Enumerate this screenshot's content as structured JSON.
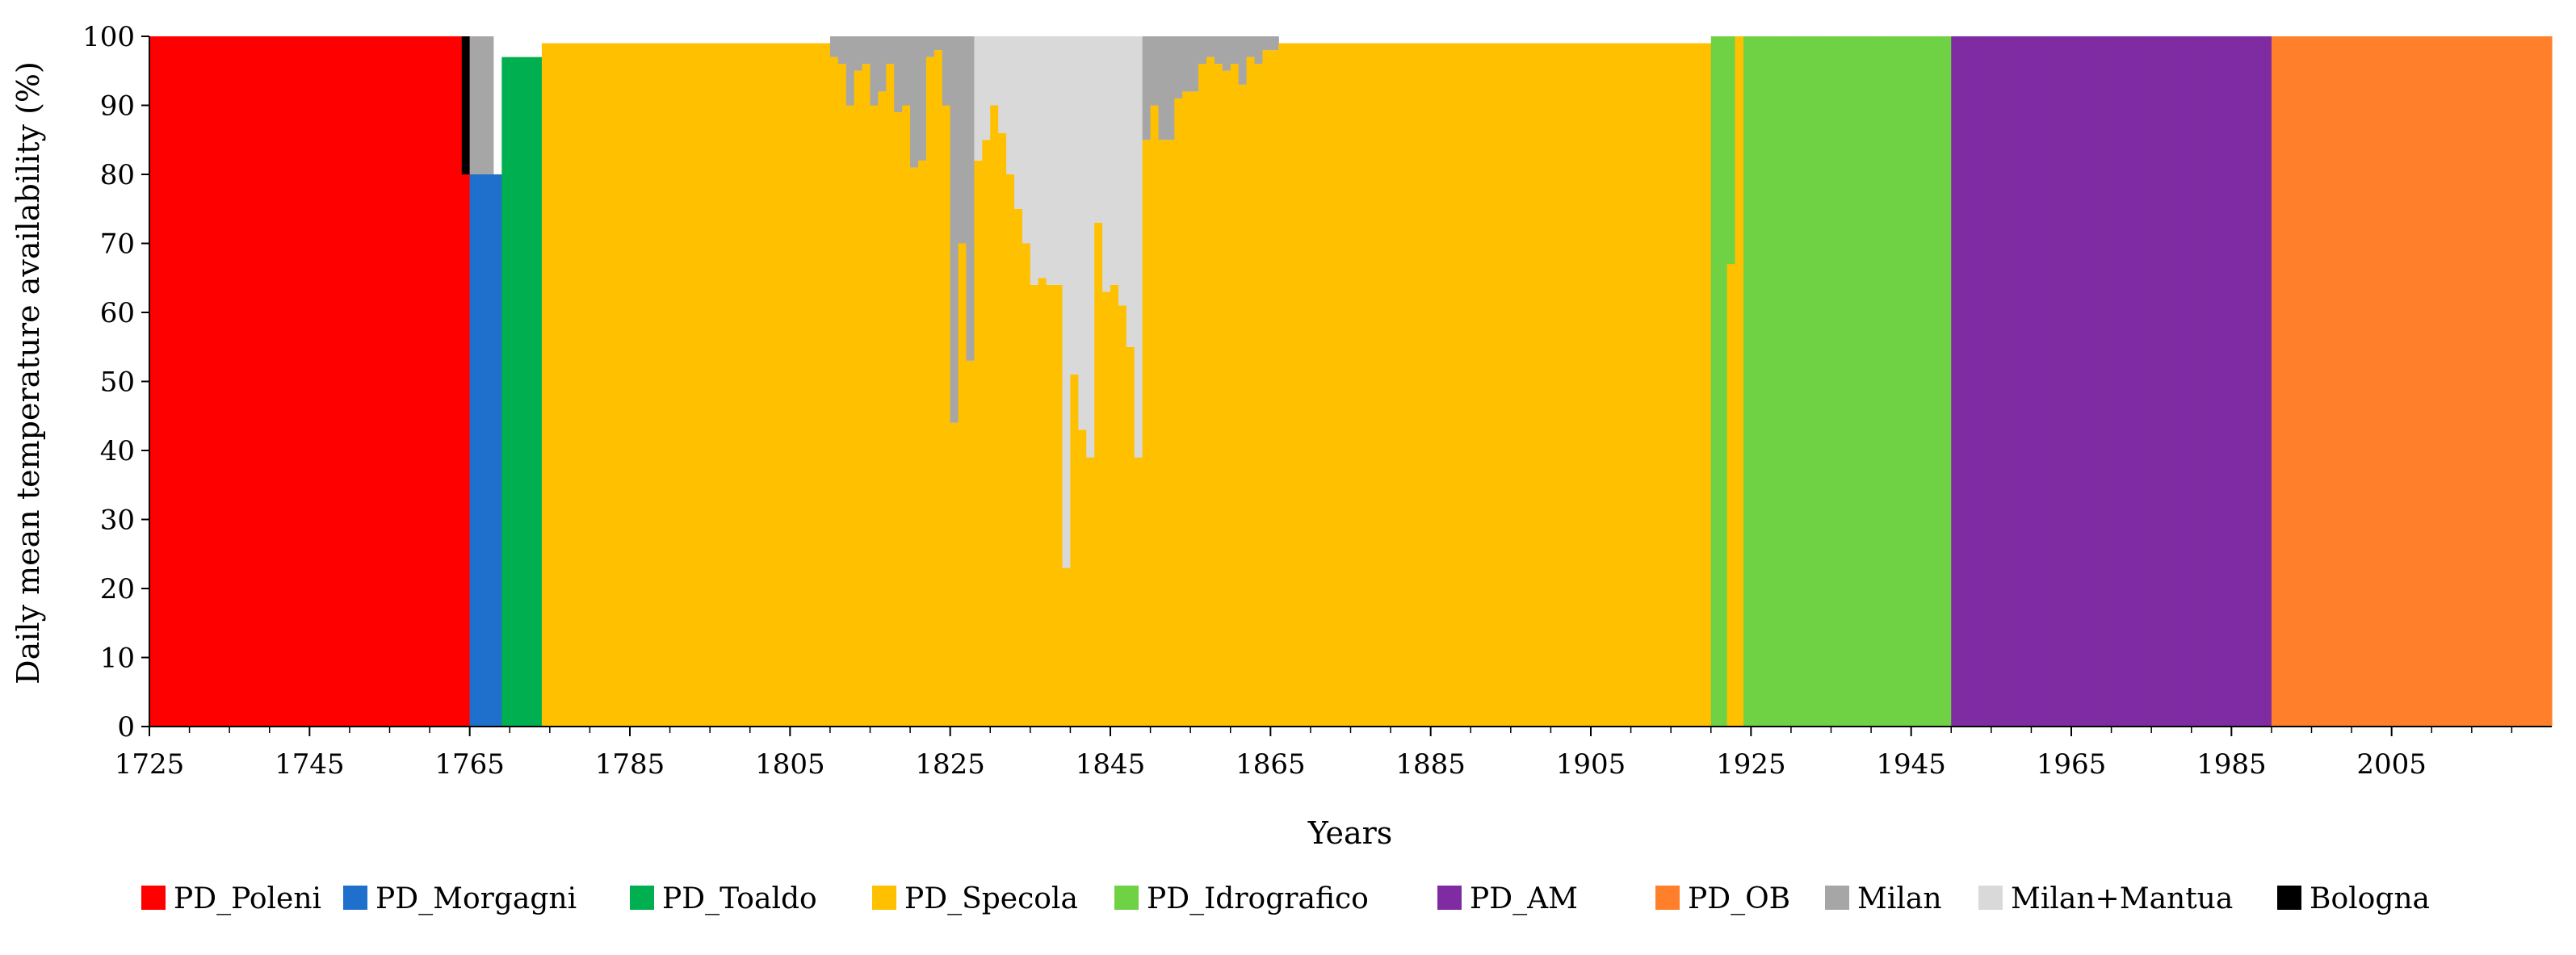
{
  "chart_data": {
    "type": "bar",
    "stacked": true,
    "title": "",
    "xlabel": "Years",
    "ylabel": "Daily mean temperature availability (%)",
    "xlim": [
      1725,
      2024
    ],
    "ylim": [
      0,
      100
    ],
    "x_ticks": [
      1725,
      1745,
      1765,
      1785,
      1805,
      1825,
      1845,
      1865,
      1885,
      1905,
      1925,
      1945,
      1965,
      1985,
      2005
    ],
    "y_ticks": [
      0,
      10,
      20,
      30,
      40,
      50,
      60,
      70,
      80,
      90,
      100
    ],
    "grid": false,
    "legend_position": "bottom",
    "series": [
      {
        "name": "PD_Poleni",
        "color": "#ff0000"
      },
      {
        "name": "PD_Morgagni",
        "color": "#1f6fcd"
      },
      {
        "name": "PD_Toaldo",
        "color": "#00b050"
      },
      {
        "name": "PD_Specola",
        "color": "#ffc000"
      },
      {
        "name": "PD_Idrografico",
        "color": "#6fd144"
      },
      {
        "name": "PD_AM",
        "color": "#7f2ca3"
      },
      {
        "name": "PD_OB",
        "color": "#ff7f2a"
      },
      {
        "name": "Milan",
        "color": "#a6a6a6"
      },
      {
        "name": "Milan+Mantua",
        "color": "#d9d9d9"
      },
      {
        "name": "Bologna",
        "color": "#000000"
      }
    ],
    "spans": [
      {
        "series": "PD_Poleni",
        "from": 1725,
        "to": 1764,
        "value": 100
      },
      {
        "series": "PD_Morgagni",
        "from": 1765,
        "to": 1768,
        "value": 80
      },
      {
        "series": "PD_Toaldo",
        "from": 1769,
        "to": 1773,
        "value": 97
      },
      {
        "series": "PD_Specola",
        "from": 1774,
        "to": 1919,
        "value": 99
      },
      {
        "series": "PD_Idrografico",
        "from": 1920,
        "to": 1949,
        "value": 100
      },
      {
        "series": "PD_AM",
        "from": 1950,
        "to": 1989,
        "value": 100
      },
      {
        "series": "PD_OB",
        "from": 1990,
        "to": 2024,
        "value": 100
      }
    ],
    "specola_dips": [
      {
        "year": 1810,
        "value": 97
      },
      {
        "year": 1811,
        "value": 96
      },
      {
        "year": 1812,
        "value": 90
      },
      {
        "year": 1813,
        "value": 95
      },
      {
        "year": 1814,
        "value": 96
      },
      {
        "year": 1815,
        "value": 90
      },
      {
        "year": 1816,
        "value": 92
      },
      {
        "year": 1817,
        "value": 96
      },
      {
        "year": 1818,
        "value": 89
      },
      {
        "year": 1819,
        "value": 90
      },
      {
        "year": 1820,
        "value": 81
      },
      {
        "year": 1821,
        "value": 82
      },
      {
        "year": 1822,
        "value": 97
      },
      {
        "year": 1823,
        "value": 98
      },
      {
        "year": 1824,
        "value": 90
      },
      {
        "year": 1825,
        "value": 44
      },
      {
        "year": 1826,
        "value": 70
      },
      {
        "year": 1827,
        "value": 53
      },
      {
        "year": 1828,
        "value": 82
      },
      {
        "year": 1829,
        "value": 85
      },
      {
        "year": 1830,
        "value": 90
      },
      {
        "year": 1831,
        "value": 86
      },
      {
        "year": 1832,
        "value": 80
      },
      {
        "year": 1833,
        "value": 75
      },
      {
        "year": 1834,
        "value": 70
      },
      {
        "year": 1835,
        "value": 64
      },
      {
        "year": 1836,
        "value": 65
      },
      {
        "year": 1837,
        "value": 64
      },
      {
        "year": 1838,
        "value": 64
      },
      {
        "year": 1839,
        "value": 23
      },
      {
        "year": 1840,
        "value": 51
      },
      {
        "year": 1841,
        "value": 43
      },
      {
        "year": 1842,
        "value": 39
      },
      {
        "year": 1843,
        "value": 73
      },
      {
        "year": 1844,
        "value": 63
      },
      {
        "year": 1845,
        "value": 64
      },
      {
        "year": 1846,
        "value": 61
      },
      {
        "year": 1847,
        "value": 55
      },
      {
        "year": 1848,
        "value": 39
      },
      {
        "year": 1849,
        "value": 85
      },
      {
        "year": 1850,
        "value": 90
      },
      {
        "year": 1851,
        "value": 85
      },
      {
        "year": 1852,
        "value": 85
      },
      {
        "year": 1853,
        "value": 91
      },
      {
        "year": 1854,
        "value": 92
      },
      {
        "year": 1855,
        "value": 92
      },
      {
        "year": 1856,
        "value": 96
      },
      {
        "year": 1857,
        "value": 97
      },
      {
        "year": 1858,
        "value": 96
      },
      {
        "year": 1859,
        "value": 95
      },
      {
        "year": 1860,
        "value": 96
      },
      {
        "year": 1861,
        "value": 93
      },
      {
        "year": 1862,
        "value": 97
      },
      {
        "year": 1863,
        "value": 96
      },
      {
        "year": 1864,
        "value": 98
      },
      {
        "year": 1865,
        "value": 98
      }
    ],
    "idrografico_dips": [
      {
        "year": 1922,
        "value": 67
      },
      {
        "year": 1923,
        "value": 100
      }
    ]
  }
}
